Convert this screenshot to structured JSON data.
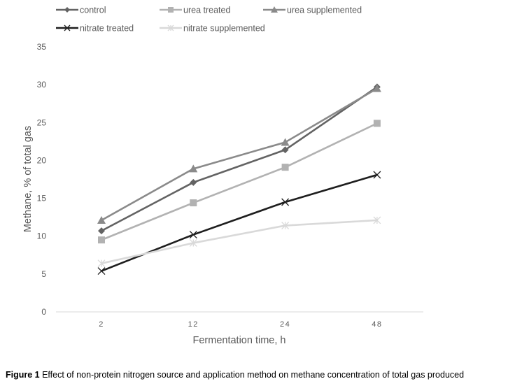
{
  "chart_data": {
    "type": "line",
    "title": "",
    "xlabel": "Fermentation time, h",
    "ylabel": "Methane, % of total gas",
    "categories": [
      "2",
      "12",
      "24",
      "48"
    ],
    "ylim": [
      0,
      35
    ],
    "yticks": [
      0,
      5,
      10,
      15,
      20,
      25,
      30,
      35
    ],
    "grid": false,
    "legend_position": "top",
    "series": [
      {
        "name": "control",
        "color": "#636363",
        "marker": "diamond",
        "values": [
          10.7,
          17.1,
          21.4,
          29.7
        ]
      },
      {
        "name": "urea treated",
        "color": "#b2b2b2",
        "marker": "square",
        "values": [
          9.5,
          14.4,
          19.1,
          24.9
        ]
      },
      {
        "name": "urea supplemented",
        "color": "#8a8a8a",
        "marker": "triangle",
        "values": [
          12.1,
          18.9,
          22.4,
          29.5
        ]
      },
      {
        "name": "nitrate treated",
        "color": "#1e1e1e",
        "marker": "x",
        "values": [
          5.4,
          10.2,
          14.5,
          18.1
        ]
      },
      {
        "name": "nitrate supplemented",
        "color": "#d9d9d9",
        "marker": "star",
        "values": [
          6.4,
          9.1,
          11.4,
          12.1
        ]
      }
    ]
  },
  "caption": {
    "label": "Figure 1",
    "text": " Effect of non-protein nitrogen source and application method on methane concentration of total gas produced"
  }
}
